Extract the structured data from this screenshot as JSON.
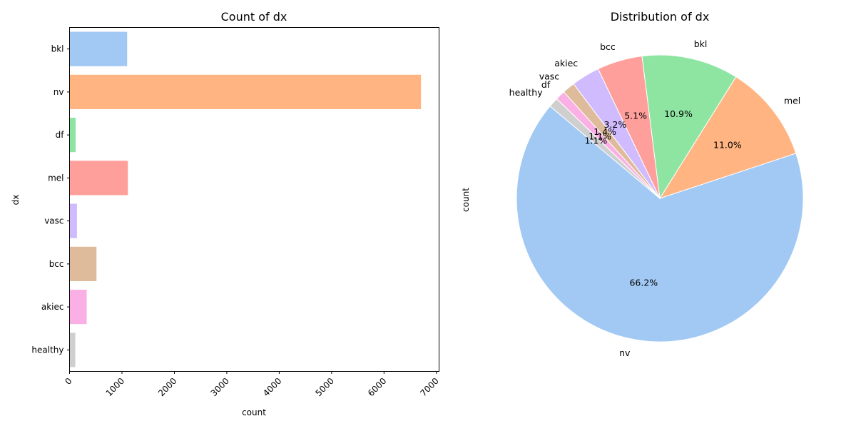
{
  "chart_data": [
    {
      "type": "bar",
      "orientation": "horizontal",
      "title": "Count of dx",
      "xlabel": "count",
      "ylabel": "dx",
      "categories": [
        "bkl",
        "nv",
        "df",
        "mel",
        "vasc",
        "bcc",
        "akiec",
        "healthy"
      ],
      "values": [
        1099,
        6705,
        115,
        1113,
        142,
        514,
        327,
        110
      ],
      "colors": [
        "#a1c9f4",
        "#ffb482",
        "#8de5a1",
        "#ff9f9b",
        "#d0bbff",
        "#debb9b",
        "#fab0e4",
        "#cfcfcf"
      ],
      "xlim": [
        0,
        7050
      ],
      "xticks": [
        0,
        1000,
        2000,
        3000,
        4000,
        5000,
        6000,
        7000
      ],
      "grid": false,
      "legend": "none"
    },
    {
      "type": "pie",
      "title": "Distribution of dx",
      "ylabel": "count",
      "labels": [
        "nv",
        "mel",
        "bkl",
        "bcc",
        "akiec",
        "vasc",
        "df",
        "healthy"
      ],
      "percent_labels": [
        "66.2%",
        "11.0%",
        "10.9%",
        "5.1%",
        "3.2%",
        "1.4%",
        "1.1%",
        "1.1%"
      ],
      "values": [
        66.2,
        11.0,
        10.9,
        5.1,
        3.2,
        1.4,
        1.1,
        1.1
      ],
      "colors": [
        "#a1c9f4",
        "#ffb482",
        "#8de5a1",
        "#ff9f9b",
        "#d0bbff",
        "#debb9b",
        "#fab0e4",
        "#cfcfcf"
      ],
      "start_angle": 140,
      "direction": "counterclockwise",
      "legend": "none"
    }
  ]
}
